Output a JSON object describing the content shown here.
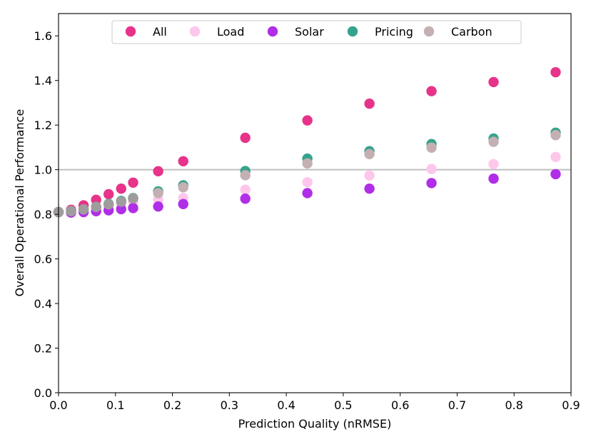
{
  "chart_data": {
    "type": "scatter",
    "title": "",
    "xlabel": "Prediction Quality (nRMSE)",
    "ylabel": "Overall Operational Performance",
    "xlim": [
      0.0,
      0.9
    ],
    "ylim": [
      0.0,
      1.7
    ],
    "xticks": [
      0.0,
      0.1,
      0.2,
      0.3,
      0.4,
      0.5,
      0.6,
      0.7,
      0.8,
      0.9
    ],
    "xtick_labels": [
      "0.0",
      "0.1",
      "0.2",
      "0.3",
      "0.4",
      "0.5",
      "0.6",
      "0.7",
      "0.8",
      "0.9"
    ],
    "yticks": [
      0.0,
      0.2,
      0.4,
      0.6,
      0.8,
      1.0,
      1.2,
      1.4,
      1.6
    ],
    "ytick_labels": [
      "0.0",
      "0.2",
      "0.4",
      "0.6",
      "0.8",
      "1.0",
      "1.2",
      "1.4",
      "1.6"
    ],
    "reference_line_y": 1.0,
    "reference_line_color": "#bfbfbf",
    "grid": false,
    "legend_position": "top-center",
    "x": [
      0.0,
      0.022,
      0.044,
      0.066,
      0.088,
      0.11,
      0.131,
      0.175,
      0.219,
      0.328,
      0.437,
      0.546,
      0.655,
      0.764,
      0.873
    ],
    "series": [
      {
        "name": "All",
        "color": "#e7338a",
        "values": [
          0.81,
          0.82,
          0.84,
          0.865,
          0.89,
          0.915,
          0.942,
          0.993,
          1.038,
          1.143,
          1.221,
          1.296,
          1.352,
          1.393,
          1.437
        ]
      },
      {
        "name": "Load",
        "color": "#fdc7ec",
        "values": [
          0.81,
          0.815,
          0.822,
          0.83,
          0.838,
          0.847,
          0.856,
          0.866,
          0.873,
          0.91,
          0.944,
          0.974,
          1.003,
          1.025,
          1.057
        ]
      },
      {
        "name": "Solar",
        "color": "#b02ee8",
        "values": [
          0.81,
          0.808,
          0.81,
          0.814,
          0.818,
          0.823,
          0.828,
          0.835,
          0.846,
          0.87,
          0.895,
          0.915,
          0.94,
          0.96,
          0.98
        ]
      },
      {
        "name": "Pricing",
        "color": "#37a38c",
        "values": [
          0.81,
          0.815,
          0.822,
          0.834,
          0.847,
          0.86,
          0.873,
          0.903,
          0.93,
          0.994,
          1.05,
          1.083,
          1.115,
          1.14,
          1.166
        ]
      },
      {
        "name": "Carbon",
        "color": "#c4b0b3",
        "values": [
          0.81,
          0.814,
          0.822,
          0.833,
          0.845,
          0.857,
          0.871,
          0.895,
          0.921,
          0.975,
          1.028,
          1.07,
          1.099,
          1.125,
          1.155
        ]
      }
    ],
    "overlay_color": "#999999"
  }
}
